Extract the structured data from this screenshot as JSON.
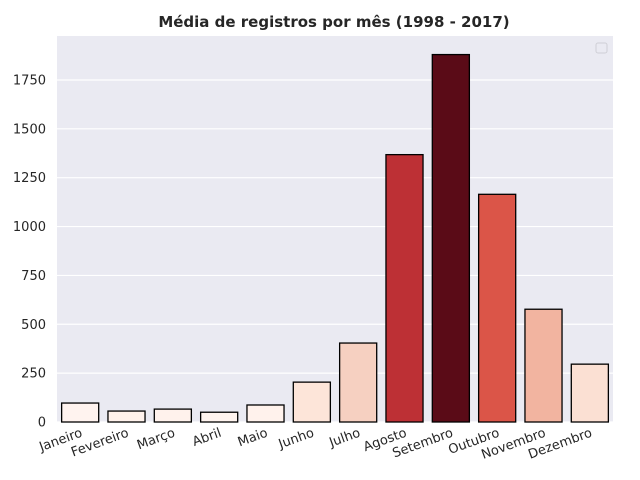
{
  "chart_data": {
    "type": "bar",
    "title": "Média de registros por mês (1998 - 2017)",
    "xlabel": "",
    "ylabel": "",
    "categories": [
      "Janeiro",
      "Fevereiro",
      "Março",
      "Abril",
      "Maio",
      "Junho",
      "Julho",
      "Agosto",
      "Setembro",
      "Outubro",
      "Novembro",
      "Dezembro"
    ],
    "values": [
      97,
      56,
      66,
      50,
      87,
      204,
      404,
      1368,
      1880,
      1165,
      577,
      296
    ],
    "colors": [
      "#fff3ef",
      "#fff2ec",
      "#fff2ec",
      "#fff4ef",
      "#fff2ec",
      "#fde5d9",
      "#f6d0c1",
      "#bd3035",
      "#5a0b17",
      "#db5548",
      "#f2b4a0",
      "#fbe0d3"
    ],
    "ylim": [
      0,
      1975
    ],
    "yticks": [
      0,
      250,
      500,
      750,
      1000,
      1250,
      1500,
      1750
    ],
    "grid": true,
    "legend": "top-right",
    "background": "#eaeaf2"
  }
}
